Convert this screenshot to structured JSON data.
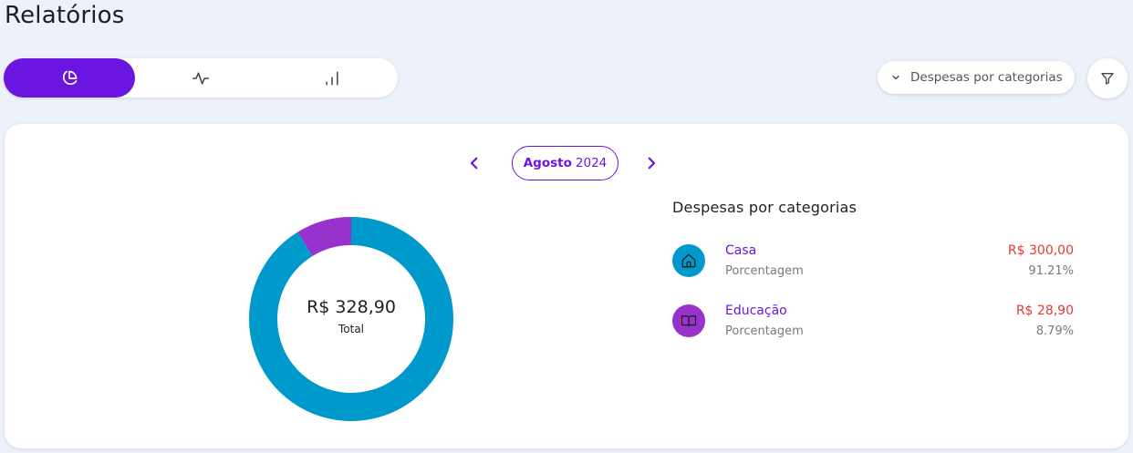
{
  "page": {
    "title": "Relatórios"
  },
  "view_switch": {
    "options": [
      {
        "icon": "pie-chart-icon",
        "active": true
      },
      {
        "icon": "activity-line-icon",
        "active": false
      },
      {
        "icon": "bar-chart-icon",
        "active": false
      }
    ]
  },
  "report_select": {
    "selected": "Despesas por categorias",
    "icon": "chevron-down-icon"
  },
  "filter": {
    "icon": "filter-icon"
  },
  "period": {
    "month": "Agosto",
    "year": "2024"
  },
  "summary": {
    "total": "R$ 328,90",
    "total_label": "Total"
  },
  "legend": {
    "title": "Despesas por categorias",
    "items": [
      {
        "name": "Casa",
        "sub_label": "Porcentagem",
        "value": "R$ 300,00",
        "percent": "91.21%",
        "icon": "home-icon",
        "color": "#0099cc"
      },
      {
        "name": "Educação",
        "sub_label": "Porcentagem",
        "value": "R$ 28,90",
        "percent": "8.79%",
        "icon": "book-icon",
        "color": "#9932cc"
      }
    ]
  },
  "colors": {
    "accent": "#6a16e0",
    "expense": "#e53935",
    "casa": "#0099cc",
    "educacao": "#9932cc"
  },
  "chart_data": {
    "type": "pie",
    "categories": [
      "Casa",
      "Educação"
    ],
    "values": [
      300.0,
      28.9
    ],
    "colors": [
      "#0099cc",
      "#9932cc"
    ]
  }
}
